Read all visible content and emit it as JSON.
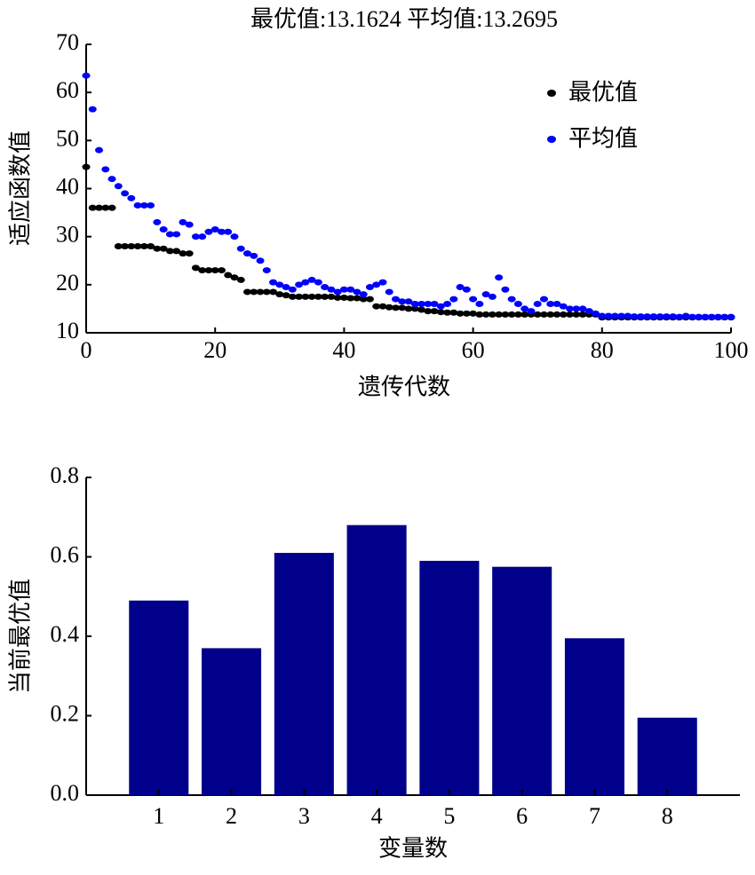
{
  "chart_data": [
    {
      "type": "scatter",
      "title": "最优值:13.1624  平均值:13.2695",
      "x_label": "遗传代数",
      "y_label": "适应函数值",
      "xlim": [
        0,
        100
      ],
      "xticks": [
        0,
        20,
        40,
        60,
        80,
        100
      ],
      "ylim": [
        10,
        70
      ],
      "yticks": [
        10,
        20,
        30,
        40,
        50,
        60,
        70
      ],
      "legend": "upper right",
      "x": [
        0,
        1,
        2,
        3,
        4,
        5,
        6,
        7,
        8,
        9,
        10,
        11,
        12,
        13,
        14,
        15,
        16,
        17,
        18,
        19,
        20,
        21,
        22,
        23,
        24,
        25,
        26,
        27,
        28,
        29,
        30,
        31,
        32,
        33,
        34,
        35,
        36,
        37,
        38,
        39,
        40,
        41,
        42,
        43,
        44,
        45,
        46,
        47,
        48,
        49,
        50,
        51,
        52,
        53,
        54,
        55,
        56,
        57,
        58,
        59,
        60,
        61,
        62,
        63,
        64,
        65,
        66,
        67,
        68,
        69,
        70,
        71,
        72,
        73,
        74,
        75,
        76,
        77,
        78,
        79,
        80,
        81,
        82,
        83,
        84,
        85,
        86,
        87,
        88,
        89,
        90,
        91,
        92,
        93,
        94,
        95,
        96,
        97,
        98,
        99,
        100
      ],
      "series": [
        {
          "name": "最优值",
          "color": "#000000",
          "values": [
            44.5,
            36,
            36,
            36,
            36,
            28,
            28,
            28,
            28,
            28,
            28,
            27.5,
            27.5,
            27,
            27,
            26.5,
            26.5,
            23.5,
            23,
            23,
            23,
            23,
            22,
            21.5,
            21,
            18.5,
            18.5,
            18.5,
            18.5,
            18.5,
            18,
            17.8,
            17.5,
            17.5,
            17.5,
            17.5,
            17.5,
            17.5,
            17.5,
            17.3,
            17.3,
            17.2,
            17.2,
            17,
            17,
            15.5,
            15.5,
            15.3,
            15.2,
            15.2,
            15,
            15,
            14.8,
            14.5,
            14.5,
            14.3,
            14.2,
            14.2,
            14,
            14,
            14,
            13.8,
            13.8,
            13.8,
            13.8,
            13.8,
            13.8,
            13.8,
            13.8,
            13.8,
            13.8,
            13.8,
            13.8,
            13.8,
            13.8,
            13.8,
            13.8,
            13.8,
            13.8,
            13.8,
            13.2,
            13.2,
            13.2,
            13.2,
            13.2,
            13.2,
            13.2,
            13.2,
            13.2,
            13.2,
            13.2,
            13.2,
            13.2,
            13.2,
            13.2,
            13.2,
            13.2,
            13.2,
            13.2,
            13.2,
            13.2
          ]
        },
        {
          "name": "平均值",
          "color": "#0000ff",
          "values": [
            63.5,
            56.5,
            48,
            44,
            42,
            40.5,
            39,
            38,
            36.5,
            36.5,
            36.5,
            33,
            31.5,
            30.5,
            30.5,
            33,
            32.5,
            30,
            30,
            31,
            31.5,
            31,
            31,
            30,
            27.5,
            26.5,
            26,
            25,
            23,
            20.5,
            20,
            19.5,
            19,
            20,
            20.5,
            21,
            20.5,
            19.5,
            19,
            18.5,
            19,
            19,
            18.5,
            18,
            19.5,
            20,
            20.5,
            18.5,
            17,
            16.5,
            16.5,
            16,
            16,
            16,
            16,
            15.5,
            16,
            17,
            19.5,
            19,
            17,
            16,
            18,
            17.5,
            21.5,
            19,
            17,
            16,
            15,
            14.5,
            16,
            17,
            16,
            16,
            15.5,
            15,
            15,
            15,
            14.5,
            14,
            13.5,
            13.5,
            13.5,
            13.5,
            13.5,
            13.4,
            13.4,
            13.4,
            13.4,
            13.4,
            13.4,
            13.4,
            13.3,
            13.5,
            13.3,
            13.3,
            13.3,
            13.3,
            13.3,
            13.3,
            13.3
          ]
        }
      ]
    },
    {
      "type": "bar",
      "x_label": "变量数",
      "y_label": "当前最优值",
      "color": "#00008b",
      "categories": [
        "1",
        "2",
        "3",
        "4",
        "5",
        "6",
        "7",
        "8"
      ],
      "values": [
        0.49,
        0.37,
        0.61,
        0.68,
        0.59,
        0.575,
        0.395,
        0.195
      ],
      "ylim": [
        0,
        0.8
      ],
      "yticks": [
        {
          "value": 0,
          "label": "0.0"
        },
        0.2,
        0.4,
        0.6,
        0.8
      ]
    }
  ]
}
